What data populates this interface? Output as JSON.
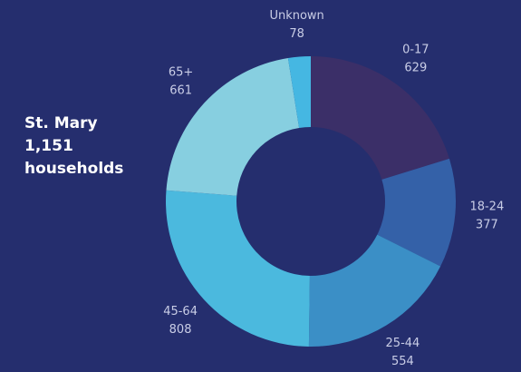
{
  "chart_data": {
    "type": "donut",
    "title": "St. Mary",
    "total_label": "1,151",
    "total_unit": "households",
    "categories": [
      "0-17",
      "18-24",
      "25-44",
      "45-64",
      "65+",
      "Unknown"
    ],
    "values": [
      629,
      377,
      554,
      808,
      661,
      78
    ],
    "colors": [
      "#3b2f68",
      "#3461a8",
      "#3b8fc6",
      "#4bb9de",
      "#87cfe0",
      "#45b7e2"
    ]
  }
}
